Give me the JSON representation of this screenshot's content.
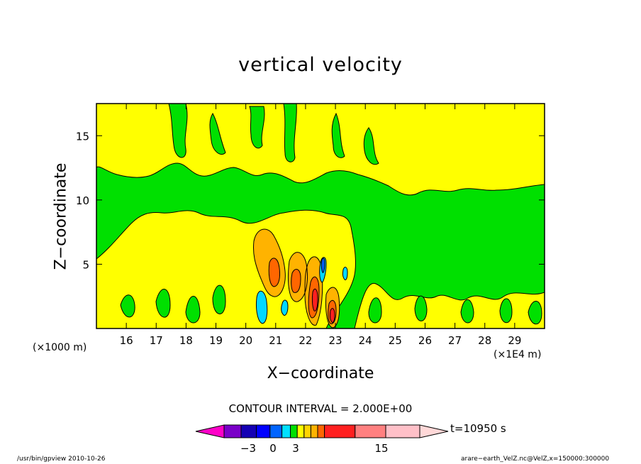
{
  "figure": {
    "title": "vertical velocity",
    "xlabel": "X−coordinate",
    "ylabel": "Z−coordinate",
    "x_unit_left": "(×1000 m)",
    "x_unit_right": "(×1E4 m)",
    "contour_interval": "CONTOUR INTERVAL = 2.000E+00",
    "time": "t=10950 s",
    "footer_left": "/usr/bin/gpview   2010-10-26",
    "footer_right": "arare−earth_VelZ.nc@VelZ,x=150000:300000"
  },
  "colors": {
    "background": "#ffffff",
    "level_yellow": "#ffff00",
    "level_green": "#00e000",
    "level_orange": "#ffb300",
    "level_deep_orange": "#ff6600",
    "level_red": "#ff2020",
    "level_cyan": "#00d8ff",
    "level_blue": "#0060ff",
    "frame": "#000000"
  },
  "chart_data": {
    "type": "heatmap",
    "subtype": "filled contour",
    "title": "vertical velocity",
    "xlabel": "X−coordinate",
    "ylabel": "Z−coordinate",
    "x_ticks": [
      16,
      17,
      18,
      19,
      20,
      21,
      22,
      23,
      24,
      25,
      26,
      27,
      28,
      29
    ],
    "x_tick_scale": "×1E4 m",
    "y_ticks": [
      5,
      10,
      15
    ],
    "y_tick_scale": "×1000 m",
    "xlim": [
      15.0,
      30.0
    ],
    "ylim": [
      0.0,
      17.5
    ],
    "contour_interval": 2.0,
    "colorbar": {
      "colors": [
        "#ff00c8",
        "#7a00c8",
        "#1400b4",
        "#0000ff",
        "#0064ff",
        "#00e0ff",
        "#00e000",
        "#ffff00",
        "#ffd400",
        "#ffb300",
        "#ff6600",
        "#ff2020",
        "#ff8080",
        "#ffc0c8",
        "#ffd8d8"
      ],
      "tick_labels": [
        "−3",
        "0",
        "3",
        "15"
      ],
      "extend": "both"
    },
    "regions": [
      {
        "level": "yellow",
        "description_x": [
          15.0,
          30.0
        ],
        "z_range": [
          11,
          17.5
        ]
      },
      {
        "level": "green",
        "x_range": [
          15.0,
          30.0
        ],
        "z_range": [
          0,
          12
        ]
      },
      {
        "level": "yellow",
        "x_range": [
          17.5,
          22.5
        ],
        "z_range": [
          0,
          9
        ]
      },
      {
        "level": "orange",
        "x_range": [
          20.3,
          23.2
        ],
        "z_range": [
          0.5,
          8
        ]
      },
      {
        "level": "red",
        "x_range": [
          22.1,
          23.0
        ],
        "z_range": [
          0.3,
          4.5
        ]
      },
      {
        "level": "cyan",
        "x_range": [
          20.5,
          22.7
        ],
        "z_range": [
          0.5,
          6.0
        ]
      }
    ],
    "time": "t=10950 s"
  }
}
